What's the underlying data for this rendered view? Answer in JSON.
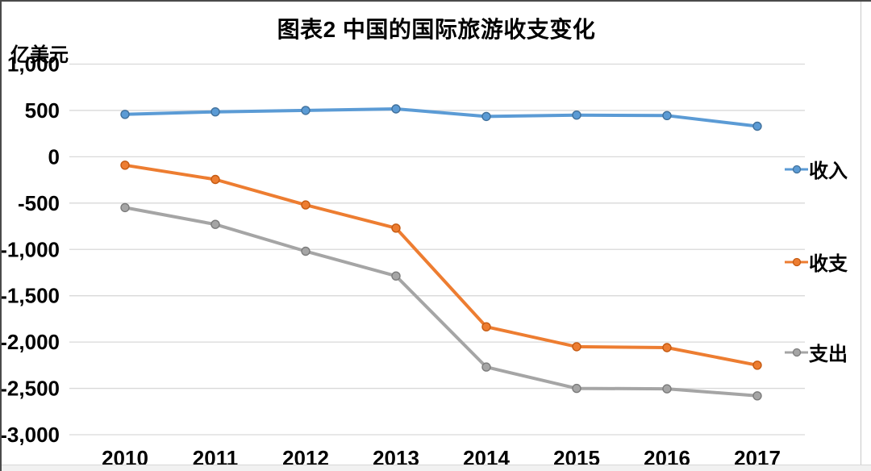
{
  "chart_data": {
    "type": "line",
    "title": "图表2 中国的国际旅游收支变化",
    "ylabel": "亿美元",
    "xlabel": "",
    "categories": [
      "2010",
      "2011",
      "2012",
      "2013",
      "2014",
      "2015",
      "2016",
      "2017"
    ],
    "series": [
      {
        "name": "收入",
        "color": "#5B9BD5",
        "marker_border": "#41719C",
        "values": [
          458,
          485,
          500,
          517,
          435,
          450,
          445,
          330
        ]
      },
      {
        "name": "收支",
        "color": "#ED7D31",
        "marker_border": "#C55A11",
        "values": [
          -91,
          -245,
          -520,
          -770,
          -1835,
          -2050,
          -2060,
          -2250
        ]
      },
      {
        "name": "支出",
        "color": "#A5A5A5",
        "marker_border": "#7B7B7B",
        "values": [
          -549,
          -730,
          -1020,
          -1287,
          -2270,
          -2500,
          -2505,
          -2580
        ]
      }
    ],
    "ylim": [
      -3000,
      1000
    ],
    "ytick_values": [
      1000,
      500,
      0,
      -500,
      -1000,
      -1500,
      -2000,
      -2500,
      -3000
    ],
    "ytick_labels": [
      "1,000",
      "500",
      "0",
      "-500",
      "-1,000",
      "-1,500",
      "-2,000",
      "-2,500",
      "-3,000"
    ],
    "grid": true,
    "gridline_color": "#d9d9d9",
    "legend_position": "right"
  }
}
